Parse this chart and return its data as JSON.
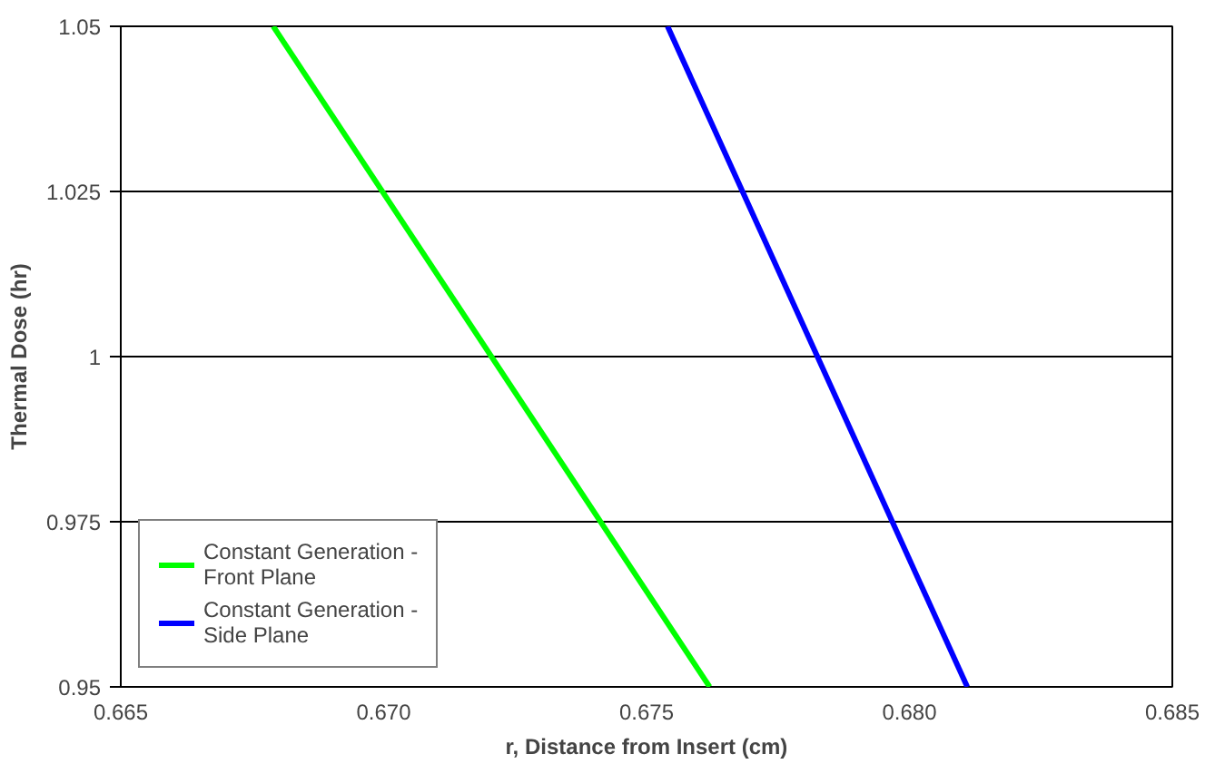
{
  "chart_data": {
    "type": "line",
    "xlabel": "r, Distance from Insert (cm)",
    "ylabel": "Thermal Dose (hr)",
    "xlim": [
      0.665,
      0.685
    ],
    "xticks": [
      {
        "value": 0.665,
        "label": "0.665"
      },
      {
        "value": 0.67,
        "label": "0.670"
      },
      {
        "value": 0.675,
        "label": "0.675"
      },
      {
        "value": 0.68,
        "label": "0.680"
      },
      {
        "value": 0.685,
        "label": "0.685"
      }
    ],
    "ylim": [
      0.95,
      1.05
    ],
    "yticks": [
      0.95,
      0.975,
      1,
      1.025,
      1.05
    ],
    "grid": "y",
    "legend": "bottom left",
    "series": [
      {
        "name": "Constant Generation - Front Plane",
        "color": "#00ff00",
        "x": [
          0.6679,
          0.6762
        ],
        "values": [
          1.05,
          0.95
        ]
      },
      {
        "name": "Constant Generation - Side Plane",
        "color": "#0000ff",
        "x": [
          0.6754,
          0.6811
        ],
        "values": [
          1.05,
          0.95
        ]
      }
    ]
  }
}
